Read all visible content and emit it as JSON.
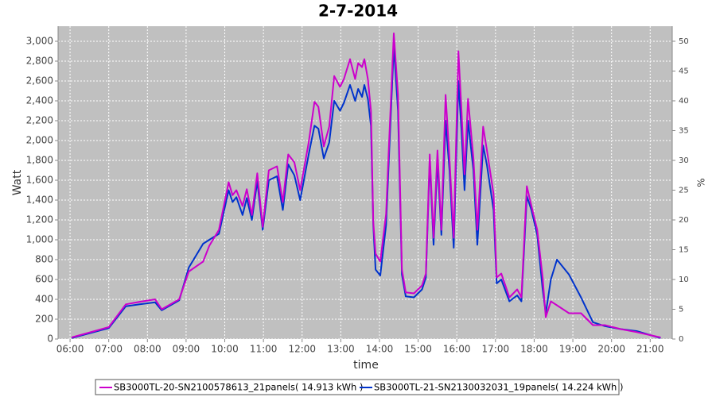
{
  "chart_data": {
    "type": "line",
    "title": "2-7-2014",
    "xlabel": "time",
    "ylabel": "Watt",
    "y2label": "%",
    "x": [
      6.04,
      7.0,
      7.44,
      7.8,
      8.2,
      8.37,
      8.82,
      9.07,
      9.44,
      9.6,
      9.85,
      10.1,
      10.2,
      10.3,
      10.46,
      10.57,
      10.7,
      10.84,
      10.98,
      11.14,
      11.35,
      11.5,
      11.64,
      11.8,
      11.95,
      12.17,
      12.32,
      12.42,
      12.56,
      12.7,
      12.83,
      12.98,
      13.08,
      13.24,
      13.37,
      13.45,
      13.55,
      13.61,
      13.7,
      13.78,
      13.84,
      13.9,
      14.02,
      14.17,
      14.23,
      14.37,
      14.48,
      14.58,
      14.68,
      14.89,
      15.1,
      15.2,
      15.3,
      15.4,
      15.5,
      15.6,
      15.71,
      15.81,
      15.92,
      16.04,
      16.12,
      16.2,
      16.29,
      16.43,
      16.53,
      16.68,
      16.78,
      16.95,
      17.03,
      17.15,
      17.36,
      17.56,
      17.67,
      17.81,
      17.93,
      18.08,
      18.22,
      18.3,
      18.43,
      18.59,
      18.9,
      19.21,
      19.52,
      19.83,
      20.24,
      20.65,
      21.27
    ],
    "series": [
      {
        "name": "SB3000TL-20-SN2100578613_21panels( 14.913 kWh )",
        "color": "#cc00cc",
        "values": [
          16,
          120,
          350,
          375,
          400,
          300,
          400,
          680,
          780,
          940,
          1100,
          1580,
          1450,
          1500,
          1340,
          1510,
          1250,
          1670,
          1130,
          1700,
          1740,
          1380,
          1860,
          1780,
          1500,
          1980,
          2390,
          2340,
          1940,
          2140,
          2650,
          2540,
          2620,
          2820,
          2620,
          2780,
          2740,
          2820,
          2620,
          2300,
          1180,
          860,
          780,
          1260,
          1820,
          3080,
          2460,
          700,
          470,
          460,
          540,
          660,
          1860,
          1020,
          1900,
          1100,
          2460,
          1820,
          1020,
          2900,
          2300,
          1660,
          2420,
          1820,
          1100,
          2140,
          1900,
          1460,
          620,
          660,
          420,
          500,
          420,
          1540,
          1340,
          1100,
          620,
          220,
          380,
          340,
          260,
          260,
          140,
          140,
          100,
          70,
          16
        ]
      },
      {
        "name": "SB3000TL-21-SN2130032031_19panels( 14.224 kWh )",
        "color": "#0033cc",
        "values": [
          10,
          110,
          330,
          350,
          370,
          290,
          390,
          720,
          960,
          1000,
          1060,
          1500,
          1380,
          1430,
          1250,
          1420,
          1200,
          1590,
          1100,
          1600,
          1640,
          1300,
          1760,
          1650,
          1400,
          1860,
          2150,
          2120,
          1820,
          1980,
          2400,
          2300,
          2380,
          2560,
          2400,
          2520,
          2440,
          2560,
          2420,
          2150,
          1150,
          700,
          640,
          1150,
          1700,
          2950,
          2300,
          650,
          430,
          420,
          500,
          620,
          1800,
          950,
          1800,
          1050,
          2200,
          1700,
          920,
          2600,
          2100,
          1500,
          2200,
          1700,
          950,
          1950,
          1750,
          1300,
          560,
          600,
          380,
          440,
          380,
          1440,
          1300,
          1050,
          500,
          260,
          600,
          800,
          650,
          420,
          170,
          130,
          100,
          80,
          10
        ]
      }
    ],
    "xlim": [
      5.69,
      21.57
    ],
    "xticks": [
      {
        "value": 6,
        "label": "06:00"
      },
      {
        "value": 7,
        "label": "07:00"
      },
      {
        "value": 8,
        "label": "08:00"
      },
      {
        "value": 9,
        "label": "09:00"
      },
      {
        "value": 10,
        "label": "10:00"
      },
      {
        "value": 11,
        "label": "11:00"
      },
      {
        "value": 12,
        "label": "12:00"
      },
      {
        "value": 13,
        "label": "13:00"
      },
      {
        "value": 14,
        "label": "14:00"
      },
      {
        "value": 15,
        "label": "15:00"
      },
      {
        "value": 16,
        "label": "16:00"
      },
      {
        "value": 17,
        "label": "17:00"
      },
      {
        "value": 18,
        "label": "18:00"
      },
      {
        "value": 19,
        "label": "19:00"
      },
      {
        "value": 20,
        "label": "20:00"
      },
      {
        "value": 21,
        "label": "21:00"
      }
    ],
    "ylim": [
      0,
      3152
    ],
    "yticks": [
      0,
      200,
      400,
      600,
      800,
      {
        "value": 1000,
        "label": "1,000"
      },
      {
        "value": 1200,
        "label": "1,200"
      },
      {
        "value": 1400,
        "label": "1,400"
      },
      {
        "value": 1600,
        "label": "1,600"
      },
      {
        "value": 1800,
        "label": "1,800"
      },
      {
        "value": 2000,
        "label": "2,000"
      },
      {
        "value": 2200,
        "label": "2,200"
      },
      {
        "value": 2400,
        "label": "2,400"
      },
      {
        "value": 2600,
        "label": "2,600"
      },
      {
        "value": 2800,
        "label": "2,800"
      },
      {
        "value": 3000,
        "label": "3,000"
      }
    ],
    "y2lim": [
      0,
      52.53
    ],
    "y2ticks": [
      0,
      5,
      10,
      15,
      20,
      25,
      30,
      35,
      40,
      45,
      50
    ],
    "grid": true
  }
}
